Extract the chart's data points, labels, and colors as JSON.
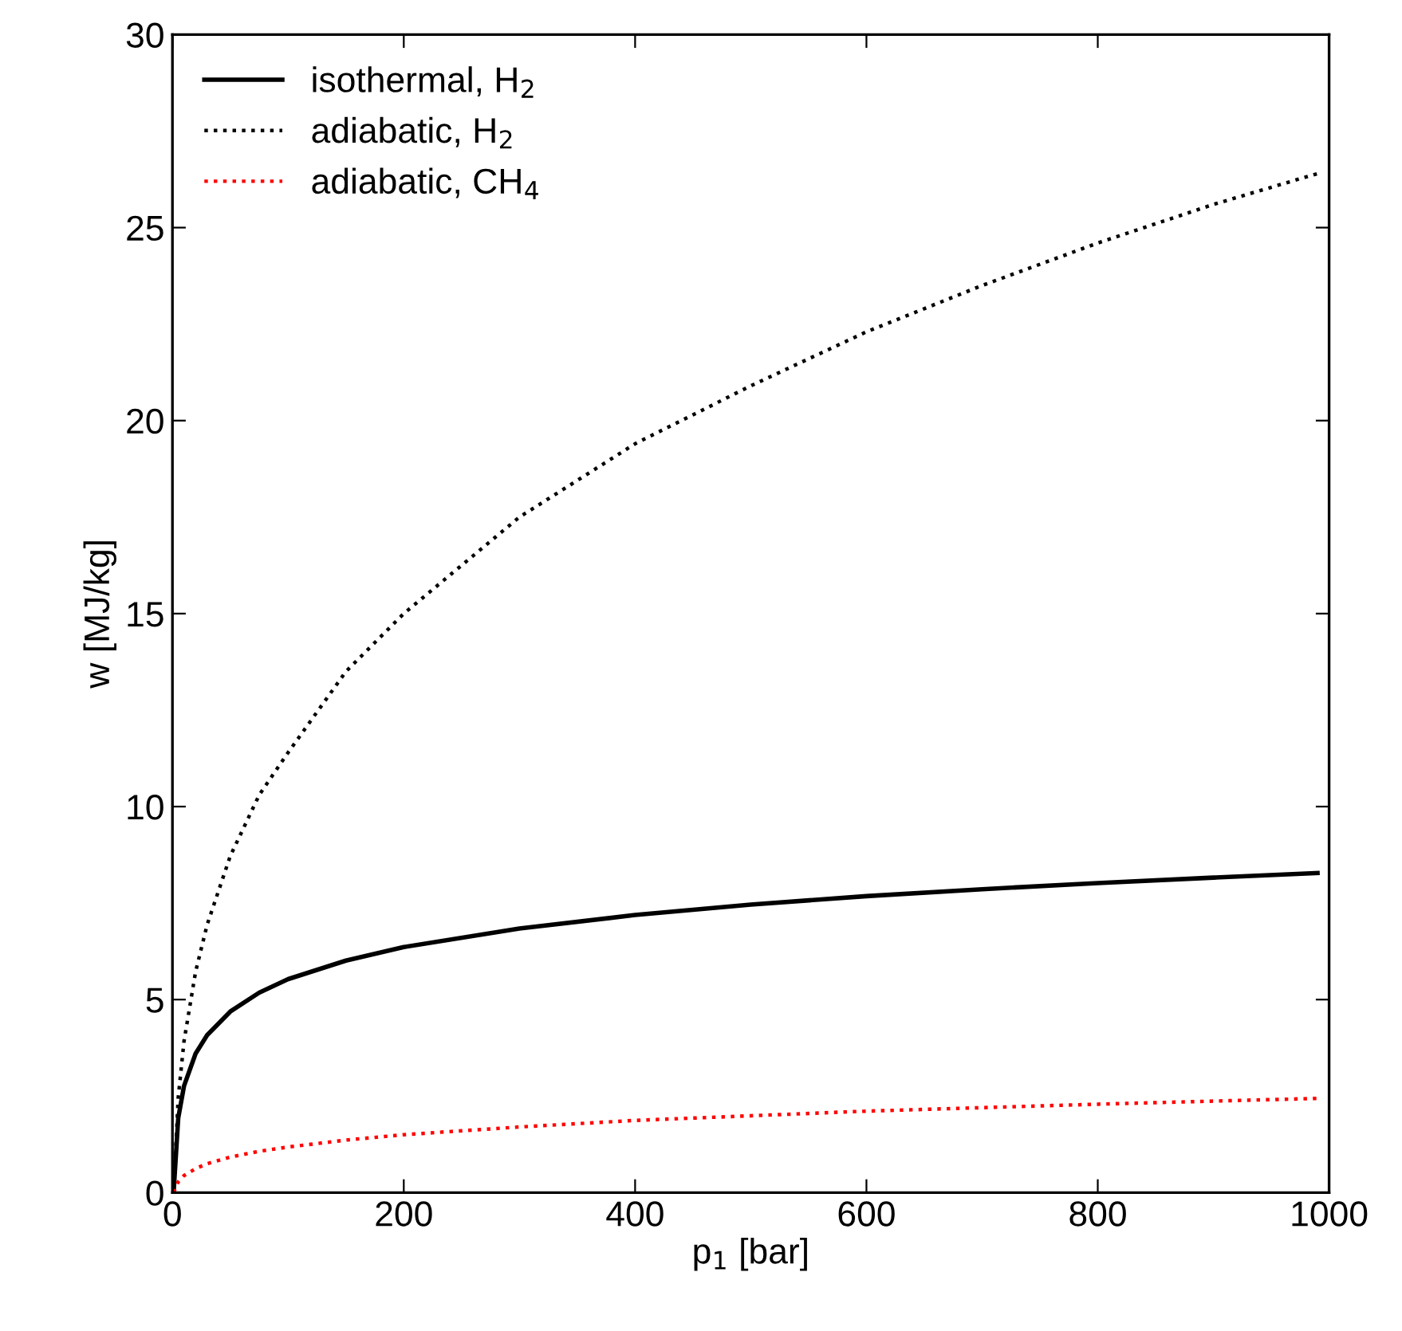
{
  "chart_data": {
    "type": "line",
    "xlabel": "p$_{1}$ [bar]",
    "ylabel": "w [MJ/kg]",
    "xlim": [
      0,
      1000
    ],
    "ylim": [
      0,
      30
    ],
    "xticks": [
      0,
      200,
      400,
      600,
      800,
      1000
    ],
    "yticks": [
      0,
      5,
      10,
      15,
      20,
      25,
      30
    ],
    "grid": false,
    "legend": "top left",
    "series": [
      {
        "name": "isothermal, H$_{2}$",
        "color": "#000000",
        "line_style": "solid",
        "x": [
          1,
          5,
          10,
          20,
          30,
          50,
          75,
          100,
          150,
          200,
          300,
          400,
          500,
          600,
          700,
          800,
          900,
          990
        ],
        "values": [
          0,
          1.93,
          2.76,
          3.6,
          4.08,
          4.69,
          5.18,
          5.53,
          6.01,
          6.36,
          6.84,
          7.19,
          7.46,
          7.68,
          7.86,
          8.02,
          8.16,
          8.28
        ]
      },
      {
        "name": "adiabatic, H$_{2}$",
        "color": "#000000",
        "line_style": "dotted",
        "x": [
          1,
          5,
          10,
          20,
          30,
          50,
          75,
          100,
          150,
          200,
          300,
          400,
          500,
          600,
          700,
          800,
          900,
          990
        ],
        "values": [
          0,
          2.46,
          3.92,
          5.72,
          6.94,
          8.72,
          10.3,
          11.4,
          13.5,
          15.0,
          17.5,
          19.4,
          20.9,
          22.3,
          23.5,
          24.6,
          25.6,
          26.4
        ]
      },
      {
        "name": "adiabatic, CH$_{4}$",
        "color": "#ff0000",
        "line_style": "dotted",
        "x": [
          1,
          5,
          10,
          20,
          30,
          50,
          75,
          100,
          150,
          200,
          300,
          400,
          500,
          600,
          700,
          800,
          900,
          990
        ],
        "values": [
          0,
          0.28,
          0.44,
          0.62,
          0.75,
          0.92,
          1.07,
          1.18,
          1.36,
          1.5,
          1.7,
          1.87,
          1.99,
          2.11,
          2.2,
          2.29,
          2.37,
          2.44
        ]
      }
    ]
  }
}
